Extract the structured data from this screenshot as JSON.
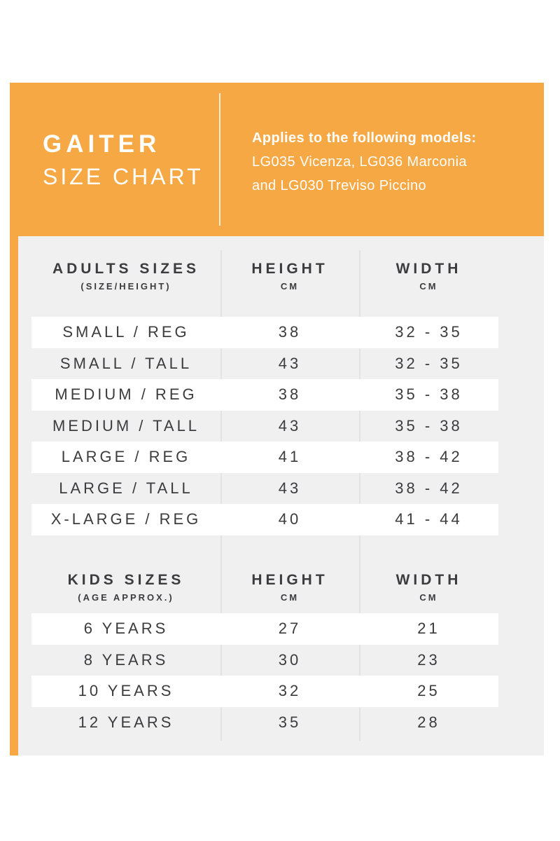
{
  "colors": {
    "accent_orange": "#F5A843",
    "panel_gray": "#F0F0F1",
    "row_white": "#FFFFFF",
    "text_dark": "#3C3C3E",
    "text_white": "#FFFFFF"
  },
  "card": {
    "title_line1": "GAITER",
    "title_line2": "SIZE CHART",
    "models_heading": "Applies to the following models:",
    "models_line1": "LG035 Vicenza, LG036 Marconia",
    "models_line2": "and LG030 Treviso Piccino"
  },
  "adults_table": {
    "header": {
      "title": "ADULTS SIZES",
      "subtitle": "(SIZE/HEIGHT)",
      "height_label": "HEIGHT",
      "height_unit": "CM",
      "width_label": "WIDTH",
      "width_unit": "CM"
    },
    "rows": [
      {
        "size": "SMALL / REG",
        "height": "38",
        "width": "32 - 35"
      },
      {
        "size": "SMALL / TALL",
        "height": "43",
        "width": "32 - 35"
      },
      {
        "size": "MEDIUM / REG",
        "height": "38",
        "width": "35 - 38"
      },
      {
        "size": "MEDIUM / TALL",
        "height": "43",
        "width": "35 - 38"
      },
      {
        "size": "LARGE / REG",
        "height": "41",
        "width": "38 - 42"
      },
      {
        "size": "LARGE / TALL",
        "height": "43",
        "width": "38 - 42"
      },
      {
        "size": "X-LARGE / REG",
        "height": "40",
        "width": "41 - 44"
      }
    ]
  },
  "kids_table": {
    "header": {
      "title": "KIDS SIZES",
      "subtitle": "(AGE APPROX.)",
      "height_label": "HEIGHT",
      "height_unit": "CM",
      "width_label": "WIDTH",
      "width_unit": "CM"
    },
    "rows": [
      {
        "size": "6 YEARS",
        "height": "27",
        "width": "21"
      },
      {
        "size": "8 YEARS",
        "height": "30",
        "width": "23"
      },
      {
        "size": "10 YEARS",
        "height": "32",
        "width": "25"
      },
      {
        "size": "12 YEARS",
        "height": "35",
        "width": "28"
      }
    ]
  }
}
